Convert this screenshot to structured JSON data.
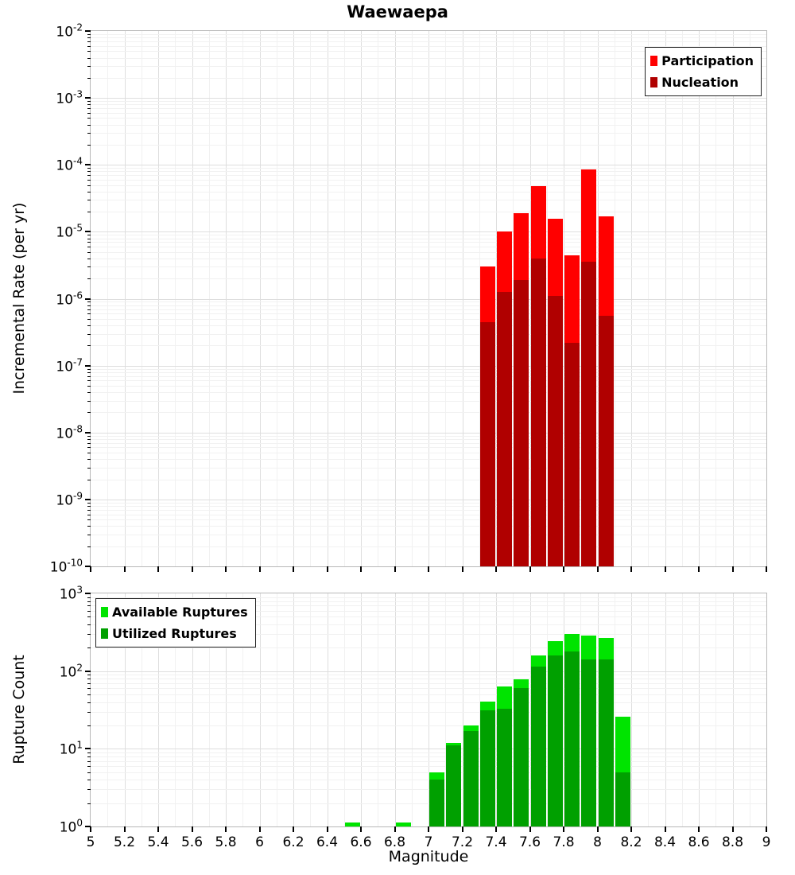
{
  "chart_data": [
    {
      "type": "bar",
      "title": "Waewaepa",
      "ylabel": "Incremental Rate (per yr)",
      "xlabel": "",
      "yscale": "log",
      "ylim": [
        1e-10,
        0.01
      ],
      "xlim": [
        5,
        9
      ],
      "bar_width": 0.1,
      "grid": true,
      "x_ticks": [
        "5",
        "5.2",
        "5.4",
        "5.6",
        "5.8",
        "6",
        "6.2",
        "6.4",
        "6.6",
        "6.8",
        "7",
        "7.2",
        "7.4",
        "7.6",
        "7.8",
        "8",
        "8.2",
        "8.4",
        "8.6",
        "8.8",
        "9"
      ],
      "show_x_tick_labels": false,
      "legend_pos": "top-right",
      "series": [
        {
          "name": "Participation",
          "color": "#ff0000",
          "x": [
            7.35,
            7.45,
            7.55,
            7.65,
            7.75,
            7.85,
            7.95,
            8.05
          ],
          "values": [
            3e-06,
            1e-05,
            1.9e-05,
            4.8e-05,
            1.55e-05,
            4.5e-06,
            8.5e-05,
            1.7e-05
          ]
        },
        {
          "name": "Nucleation",
          "color": "#b00000",
          "x": [
            7.35,
            7.45,
            7.55,
            7.65,
            7.75,
            7.85,
            7.95,
            8.05
          ],
          "values": [
            4.5e-07,
            1.25e-06,
            1.9e-06,
            4e-06,
            1.1e-06,
            2.2e-07,
            3.6e-06,
            5.5e-07
          ]
        }
      ]
    },
    {
      "type": "bar",
      "title": "",
      "ylabel": "Rupture Count",
      "xlabel": "Magnitude",
      "yscale": "log",
      "ylim": [
        1,
        1000
      ],
      "xlim": [
        5,
        9
      ],
      "bar_width": 0.1,
      "grid": true,
      "x_ticks": [
        "5",
        "5.2",
        "5.4",
        "5.6",
        "5.8",
        "6",
        "6.2",
        "6.4",
        "6.6",
        "6.8",
        "7",
        "7.2",
        "7.4",
        "7.6",
        "7.8",
        "8",
        "8.2",
        "8.4",
        "8.6",
        "8.8",
        "9"
      ],
      "show_x_tick_labels": true,
      "legend_pos": "top-left",
      "series": [
        {
          "name": "Available Ruptures",
          "color": "#00e400",
          "x": [
            6.55,
            6.85,
            7.05,
            7.15,
            7.25,
            7.35,
            7.45,
            7.55,
            7.65,
            7.75,
            7.85,
            7.95,
            8.05,
            8.15
          ],
          "values": [
            1,
            1,
            5,
            12,
            20,
            41,
            63,
            78,
            160,
            245,
            300,
            290,
            265,
            26
          ]
        },
        {
          "name": "Utilized Ruptures",
          "color": "#00a000",
          "x": [
            7.05,
            7.15,
            7.25,
            7.35,
            7.45,
            7.55,
            7.65,
            7.75,
            7.85,
            7.95,
            8.05,
            8.15
          ],
          "values": [
            4,
            11,
            17,
            31,
            33,
            60,
            115,
            160,
            180,
            140,
            140,
            5
          ]
        }
      ]
    }
  ]
}
